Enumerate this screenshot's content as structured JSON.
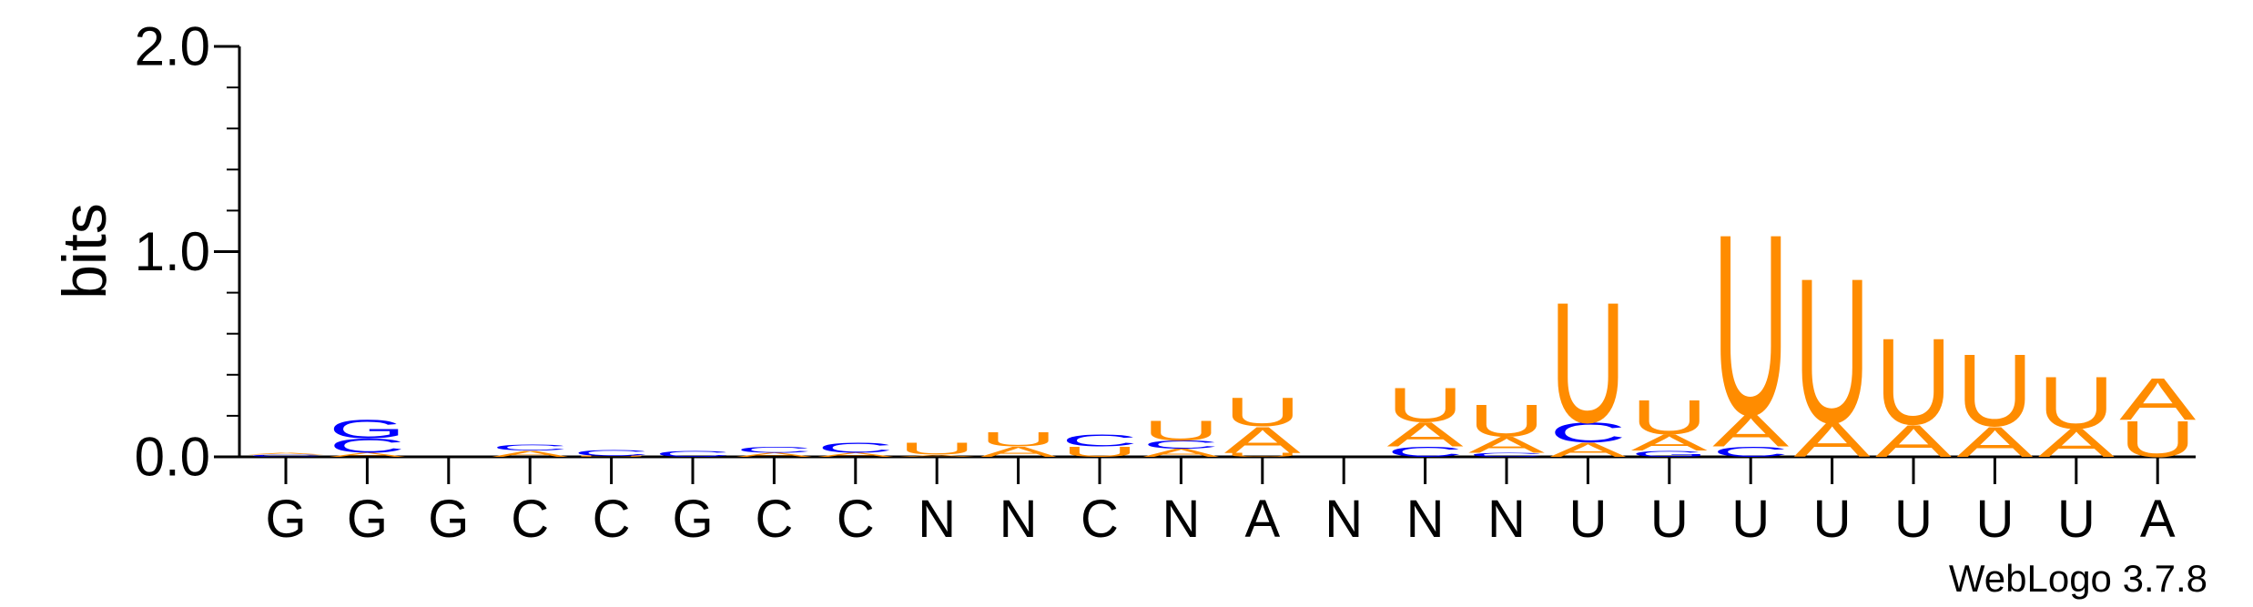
{
  "chart_data": {
    "type": "sequence-logo",
    "ylabel": "bits",
    "ylim": [
      0,
      2.0
    ],
    "yticks": [
      {
        "value": 0.0,
        "label": "0.0"
      },
      {
        "value": 1.0,
        "label": "1.0"
      },
      {
        "value": 2.0,
        "label": "2.0"
      }
    ],
    "x_labels": [
      "G",
      "G",
      "G",
      "C",
      "C",
      "G",
      "C",
      "C",
      "N",
      "N",
      "C",
      "N",
      "A",
      "N",
      "N",
      "N",
      "U",
      "U",
      "U",
      "U",
      "U",
      "U",
      "U",
      "A"
    ],
    "colors": {
      "A": "#ff8c00",
      "U": "#ff8c00",
      "C": "#0000ff",
      "G": "#0000ff"
    },
    "positions": [
      {
        "label": "G",
        "stack": [
          {
            "letter": "C",
            "height": 0.01
          },
          {
            "letter": "A",
            "height": 0.01
          }
        ]
      },
      {
        "label": "G",
        "stack": [
          {
            "letter": "A",
            "height": 0.02
          },
          {
            "letter": "C",
            "height": 0.07
          },
          {
            "letter": "G",
            "height": 0.09
          }
        ]
      },
      {
        "label": "G",
        "stack": []
      },
      {
        "label": "C",
        "stack": [
          {
            "letter": "A",
            "height": 0.03
          },
          {
            "letter": "C",
            "height": 0.03
          }
        ]
      },
      {
        "label": "C",
        "stack": [
          {
            "letter": "U",
            "height": 0.005
          },
          {
            "letter": "C",
            "height": 0.03
          }
        ]
      },
      {
        "label": "G",
        "stack": [
          {
            "letter": "C",
            "height": 0.03
          }
        ]
      },
      {
        "label": "C",
        "stack": [
          {
            "letter": "A",
            "height": 0.02
          },
          {
            "letter": "C",
            "height": 0.03
          }
        ]
      },
      {
        "label": "C",
        "stack": [
          {
            "letter": "A",
            "height": 0.02
          },
          {
            "letter": "C",
            "height": 0.05
          }
        ]
      },
      {
        "label": "N",
        "stack": [
          {
            "letter": "A",
            "height": 0.01
          },
          {
            "letter": "U",
            "height": 0.06
          }
        ]
      },
      {
        "label": "N",
        "stack": [
          {
            "letter": "A",
            "height": 0.05
          },
          {
            "letter": "U",
            "height": 0.07
          }
        ]
      },
      {
        "label": "C",
        "stack": [
          {
            "letter": "U",
            "height": 0.05
          },
          {
            "letter": "C",
            "height": 0.06
          }
        ]
      },
      {
        "label": "N",
        "stack": [
          {
            "letter": "A",
            "height": 0.04
          },
          {
            "letter": "C",
            "height": 0.04
          },
          {
            "letter": "U",
            "height": 0.1
          }
        ]
      },
      {
        "label": "A",
        "stack": [
          {
            "letter": "U",
            "height": 0.02
          },
          {
            "letter": "A",
            "height": 0.13
          },
          {
            "letter": "U",
            "height": 0.14
          }
        ]
      },
      {
        "label": "N",
        "stack": []
      },
      {
        "label": "N",
        "stack": [
          {
            "letter": "C",
            "height": 0.05
          },
          {
            "letter": "A",
            "height": 0.12
          },
          {
            "letter": "U",
            "height": 0.17
          }
        ]
      },
      {
        "label": "N",
        "stack": [
          {
            "letter": "C",
            "height": 0.02
          },
          {
            "letter": "A",
            "height": 0.08
          },
          {
            "letter": "U",
            "height": 0.16
          }
        ]
      },
      {
        "label": "U",
        "stack": [
          {
            "letter": "A",
            "height": 0.07
          },
          {
            "letter": "C",
            "height": 0.1
          },
          {
            "letter": "U",
            "height": 0.6
          }
        ]
      },
      {
        "label": "U",
        "stack": [
          {
            "letter": "G",
            "height": 0.03
          },
          {
            "letter": "A",
            "height": 0.08
          },
          {
            "letter": "U",
            "height": 0.17
          }
        ]
      },
      {
        "label": "U",
        "stack": [
          {
            "letter": "C",
            "height": 0.05
          },
          {
            "letter": "A",
            "height": 0.16
          },
          {
            "letter": "U",
            "height": 0.9
          }
        ]
      },
      {
        "label": "U",
        "stack": [
          {
            "letter": "A",
            "height": 0.17
          },
          {
            "letter": "U",
            "height": 0.72
          }
        ]
      },
      {
        "label": "U",
        "stack": [
          {
            "letter": "A",
            "height": 0.16
          },
          {
            "letter": "U",
            "height": 0.43
          }
        ]
      },
      {
        "label": "U",
        "stack": [
          {
            "letter": "A",
            "height": 0.15
          },
          {
            "letter": "U",
            "height": 0.36
          }
        ]
      },
      {
        "label": "U",
        "stack": [
          {
            "letter": "A",
            "height": 0.14
          },
          {
            "letter": "U",
            "height": 0.26
          }
        ]
      },
      {
        "label": "A",
        "stack": [
          {
            "letter": "U",
            "height": 0.18
          },
          {
            "letter": "A",
            "height": 0.21
          }
        ]
      }
    ]
  },
  "credit": "WebLogo 3.7.8"
}
